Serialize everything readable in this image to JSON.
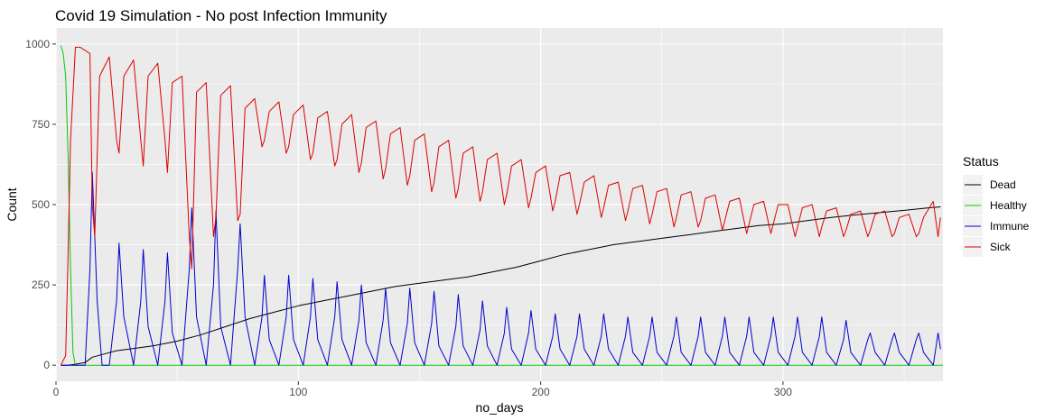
{
  "chart_data": {
    "type": "line",
    "title": "Covid 19 Simulation - No post Infection Immunity",
    "xlabel": "no_days",
    "ylabel": "Count",
    "xlim": [
      0,
      366
    ],
    "ylim": [
      0,
      1000
    ],
    "x_ticks": [
      0,
      100,
      200,
      300
    ],
    "x_tick_labels": [
      "0",
      "100",
      "200",
      "300"
    ],
    "y_ticks": [
      0,
      250,
      500,
      750,
      1000
    ],
    "y_tick_labels": [
      "0",
      "250",
      "500",
      "750",
      "1000"
    ],
    "grid": true,
    "legend": {
      "title": "Status",
      "placement": "right"
    },
    "series": [
      {
        "name": "Dead",
        "color": "#000000",
        "x": [
          2,
          5,
          8,
          12,
          15,
          20,
          25,
          30,
          40,
          50,
          60,
          70,
          80,
          90,
          100,
          110,
          120,
          130,
          140,
          150,
          160,
          170,
          180,
          190,
          200,
          210,
          220,
          230,
          240,
          250,
          260,
          270,
          280,
          290,
          300,
          310,
          320,
          330,
          340,
          350,
          360,
          365
        ],
        "y": [
          0,
          0,
          3,
          8,
          25,
          35,
          45,
          50,
          60,
          75,
          95,
          120,
          145,
          165,
          185,
          200,
          215,
          230,
          245,
          255,
          265,
          275,
          290,
          305,
          325,
          345,
          360,
          375,
          385,
          395,
          405,
          415,
          425,
          435,
          440,
          450,
          460,
          468,
          475,
          482,
          490,
          493
        ]
      },
      {
        "name": "Healthy",
        "color": "#00cc00",
        "x": [
          2,
          3,
          4,
          5,
          6,
          7,
          8,
          366
        ],
        "y": [
          995,
          970,
          900,
          650,
          300,
          40,
          0,
          0
        ]
      },
      {
        "name": "Immune",
        "color": "#0000cc",
        "x": [
          2,
          8,
          12,
          14,
          15,
          17,
          19,
          22,
          25,
          26,
          28,
          32,
          35,
          36,
          38,
          42,
          45,
          46,
          48,
          52,
          55,
          56,
          58,
          62,
          65,
          66,
          68,
          72,
          75,
          76,
          78,
          82,
          85,
          86,
          88,
          92,
          95,
          96,
          98,
          102,
          105,
          106,
          108,
          112,
          115,
          116,
          118,
          122,
          125,
          126,
          128,
          132,
          135,
          136,
          138,
          142,
          145,
          146,
          148,
          152,
          155,
          156,
          158,
          162,
          165,
          166,
          168,
          172,
          175,
          176,
          178,
          182,
          185,
          186,
          188,
          192,
          195,
          196,
          198,
          202,
          205,
          206,
          208,
          212,
          215,
          216,
          218,
          222,
          225,
          226,
          228,
          232,
          235,
          236,
          238,
          242,
          245,
          246,
          248,
          252,
          255,
          256,
          258,
          262,
          265,
          266,
          268,
          272,
          275,
          276,
          278,
          282,
          285,
          286,
          288,
          292,
          295,
          296,
          298,
          302,
          305,
          306,
          308,
          312,
          315,
          316,
          318,
          322,
          325,
          326,
          328,
          332,
          335,
          336,
          338,
          342,
          345,
          346,
          348,
          352,
          355,
          356,
          358,
          362,
          364,
          365
        ],
        "y": [
          0,
          0,
          0,
          300,
          600,
          200,
          0,
          0,
          200,
          380,
          150,
          0,
          200,
          360,
          120,
          0,
          200,
          350,
          100,
          0,
          300,
          490,
          150,
          0,
          250,
          480,
          120,
          0,
          300,
          440,
          150,
          0,
          150,
          280,
          80,
          0,
          150,
          280,
          80,
          0,
          150,
          270,
          80,
          0,
          150,
          260,
          80,
          0,
          140,
          250,
          70,
          0,
          140,
          240,
          70,
          0,
          130,
          240,
          70,
          0,
          130,
          230,
          60,
          0,
          120,
          220,
          60,
          0,
          110,
          200,
          60,
          0,
          100,
          180,
          50,
          0,
          100,
          170,
          50,
          0,
          90,
          160,
          50,
          0,
          90,
          160,
          50,
          0,
          90,
          160,
          50,
          0,
          90,
          150,
          40,
          0,
          90,
          150,
          40,
          0,
          90,
          150,
          40,
          0,
          90,
          150,
          40,
          0,
          90,
          150,
          40,
          0,
          90,
          150,
          40,
          0,
          90,
          150,
          40,
          0,
          90,
          150,
          40,
          0,
          90,
          150,
          40,
          0,
          80,
          140,
          40,
          0,
          80,
          100,
          40,
          0,
          80,
          100,
          40,
          0,
          80,
          100,
          40,
          0,
          100,
          50
        ]
      },
      {
        "name": "Sick",
        "color": "#dd0000",
        "x": [
          2,
          4,
          5,
          6,
          8,
          10,
          14,
          15,
          16,
          18,
          22,
          25,
          26,
          28,
          32,
          35,
          36,
          38,
          42,
          45,
          46,
          48,
          52,
          55,
          56,
          58,
          62,
          65,
          66,
          68,
          72,
          75,
          76,
          78,
          82,
          85,
          86,
          88,
          92,
          95,
          96,
          98,
          102,
          105,
          106,
          108,
          112,
          115,
          116,
          118,
          122,
          125,
          126,
          128,
          132,
          135,
          136,
          138,
          142,
          145,
          146,
          148,
          152,
          155,
          156,
          158,
          162,
          165,
          166,
          168,
          172,
          175,
          176,
          178,
          182,
          185,
          186,
          188,
          192,
          195,
          196,
          198,
          202,
          205,
          206,
          208,
          212,
          215,
          216,
          218,
          222,
          225,
          226,
          228,
          232,
          235,
          236,
          238,
          242,
          245,
          246,
          248,
          252,
          255,
          256,
          258,
          262,
          265,
          266,
          268,
          272,
          275,
          276,
          278,
          282,
          285,
          286,
          288,
          292,
          295,
          296,
          298,
          302,
          305,
          306,
          308,
          312,
          315,
          316,
          318,
          322,
          325,
          326,
          328,
          332,
          335,
          336,
          338,
          342,
          345,
          346,
          348,
          352,
          355,
          356,
          358,
          362,
          364,
          365
        ],
        "y": [
          0,
          30,
          350,
          700,
          990,
          990,
          970,
          500,
          400,
          900,
          960,
          700,
          660,
          900,
          950,
          700,
          620,
          900,
          940,
          700,
          600,
          880,
          900,
          400,
          300,
          850,
          880,
          400,
          460,
          840,
          870,
          450,
          470,
          800,
          830,
          680,
          700,
          790,
          820,
          660,
          680,
          780,
          810,
          640,
          660,
          770,
          790,
          620,
          640,
          750,
          780,
          600,
          630,
          740,
          760,
          580,
          610,
          720,
          740,
          560,
          590,
          700,
          720,
          540,
          570,
          680,
          700,
          520,
          550,
          660,
          680,
          510,
          540,
          640,
          660,
          500,
          530,
          620,
          640,
          490,
          520,
          600,
          620,
          480,
          510,
          590,
          600,
          470,
          500,
          570,
          590,
          460,
          490,
          560,
          570,
          450,
          480,
          550,
          560,
          440,
          470,
          540,
          550,
          430,
          460,
          530,
          540,
          430,
          450,
          520,
          530,
          420,
          450,
          510,
          520,
          410,
          440,
          500,
          510,
          410,
          440,
          500,
          500,
          400,
          430,
          490,
          500,
          400,
          430,
          480,
          490,
          400,
          420,
          470,
          480,
          400,
          420,
          470,
          480,
          400,
          410,
          460,
          470,
          400,
          410,
          460,
          510,
          400,
          460
        ]
      }
    ]
  }
}
